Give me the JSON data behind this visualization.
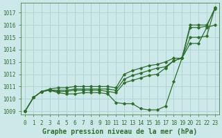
{
  "title": "Graphe pression niveau de la mer (hPa)",
  "background_color": "#cce8e8",
  "grid_color": "#afd4d4",
  "line_color": "#2d6e2d",
  "xlim": [
    -0.5,
    23.5
  ],
  "ylim": [
    1008.7,
    1017.8
  ],
  "yticks": [
    1009,
    1010,
    1011,
    1012,
    1013,
    1014,
    1015,
    1016,
    1017
  ],
  "xticks": [
    0,
    1,
    2,
    3,
    4,
    5,
    6,
    7,
    8,
    9,
    10,
    11,
    12,
    13,
    14,
    15,
    16,
    17,
    18,
    19,
    20,
    21,
    22,
    23
  ],
  "series": [
    {
      "x": [
        0,
        1,
        2,
        3,
        4,
        5,
        6,
        7,
        8,
        9,
        10,
        11,
        12,
        13,
        14,
        15,
        16,
        17,
        18,
        19,
        20,
        21,
        22,
        23
      ],
      "y": [
        1009.0,
        1010.1,
        1010.6,
        1010.7,
        1010.5,
        1010.4,
        1010.4,
        1010.5,
        1010.5,
        1010.5,
        1010.4,
        1009.7,
        1009.6,
        1009.6,
        1009.2,
        1009.1,
        1009.1,
        1009.4,
        1011.4,
        1013.3,
        1016.0,
        1016.0,
        1016.0,
        1017.3
      ]
    },
    {
      "x": [
        0,
        1,
        2,
        3,
        4,
        5,
        6,
        7,
        8,
        9,
        10,
        11,
        12,
        13,
        14,
        15,
        16,
        17,
        18,
        19,
        20,
        21,
        22,
        23
      ],
      "y": [
        1009.0,
        1010.1,
        1010.6,
        1010.7,
        1010.6,
        1010.6,
        1010.7,
        1010.7,
        1010.7,
        1010.7,
        1010.6,
        1010.5,
        1011.3,
        1011.5,
        1011.7,
        1011.9,
        1012.0,
        1012.5,
        1013.1,
        1013.3,
        1014.5,
        1014.5,
        1015.8,
        1016.0
      ]
    },
    {
      "x": [
        0,
        1,
        2,
        3,
        4,
        5,
        6,
        7,
        8,
        9,
        10,
        11,
        12,
        13,
        14,
        15,
        16,
        17,
        18,
        19,
        20,
        21,
        22,
        23
      ],
      "y": [
        1009.0,
        1010.1,
        1010.6,
        1010.7,
        1010.7,
        1010.7,
        1010.8,
        1010.8,
        1010.8,
        1010.8,
        1010.8,
        1010.7,
        1011.6,
        1011.9,
        1012.1,
        1012.3,
        1012.5,
        1012.6,
        1013.1,
        1013.3,
        1015.0,
        1015.0,
        1015.1,
        1017.4
      ]
    },
    {
      "x": [
        0,
        1,
        2,
        3,
        4,
        5,
        6,
        7,
        8,
        9,
        10,
        11,
        12,
        13,
        14,
        15,
        16,
        17,
        18,
        19,
        20,
        21,
        22,
        23
      ],
      "y": [
        1009.0,
        1010.1,
        1010.6,
        1010.8,
        1010.9,
        1010.9,
        1011.0,
        1011.0,
        1011.0,
        1011.0,
        1011.0,
        1010.9,
        1012.0,
        1012.3,
        1012.5,
        1012.7,
        1012.8,
        1013.0,
        1013.3,
        1013.3,
        1015.8,
        1015.8,
        1015.9,
        1017.4
      ]
    }
  ],
  "font_size_label": 7,
  "font_size_tick": 5.5
}
